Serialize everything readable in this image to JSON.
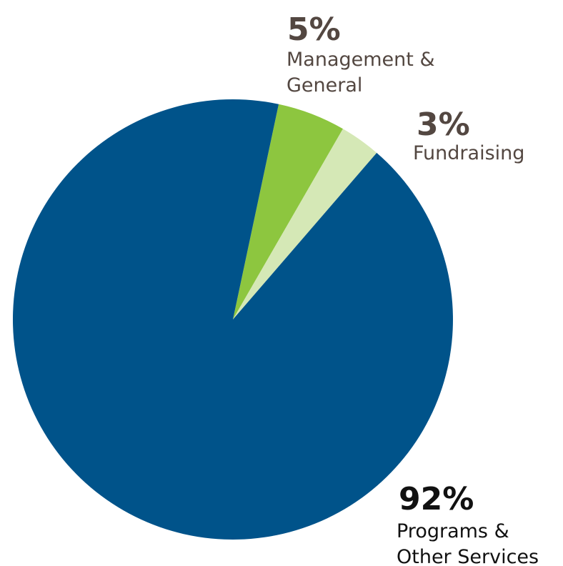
{
  "chart_data": {
    "type": "pie",
    "slices": [
      {
        "label": "Programs & Other Services",
        "label_lines": [
          "Programs &",
          "Other Services"
        ],
        "percent_text": "92%",
        "value": 92,
        "color": "#00538a"
      },
      {
        "label": "Management & General",
        "label_lines": [
          "Management &",
          "General"
        ],
        "percent_text": "5%",
        "value": 5,
        "color": "#8dc63f"
      },
      {
        "label": "Fundraising",
        "label_lines": [
          "Fundraising"
        ],
        "percent_text": "3%",
        "value": 3,
        "color": "#d5e8b6"
      }
    ],
    "title": "",
    "legend": "none"
  },
  "colors": {
    "label_text_brown": "#534741",
    "label_text_dark": "#111111"
  }
}
